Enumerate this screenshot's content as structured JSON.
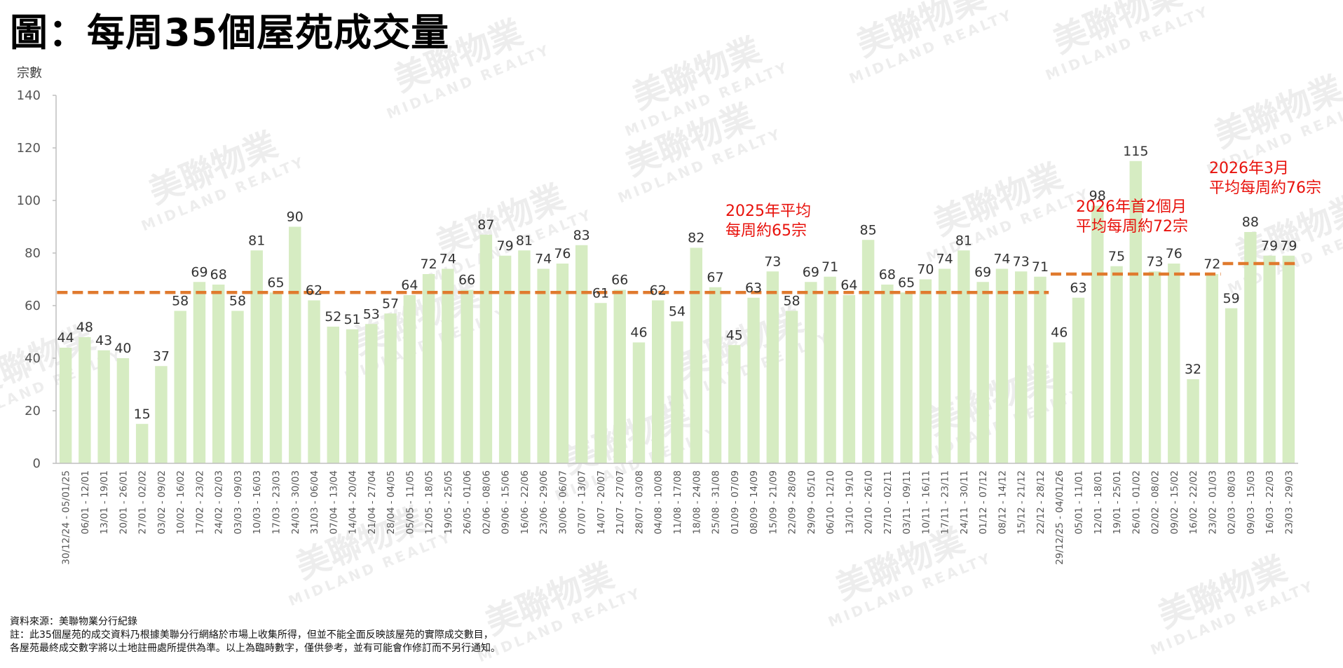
{
  "title": "圖：每周35個屋苑成交量",
  "chart_data": {
    "type": "bar",
    "title": "圖：每周35個屋苑成交量",
    "ylabel": "宗數",
    "xlabel": "",
    "ylim": [
      0,
      140
    ],
    "yticks": [
      0,
      20,
      40,
      60,
      80,
      100,
      120,
      140
    ],
    "grid": false,
    "categories": [
      "30/12/24 - 05/01/25",
      "06/01 - 12/01",
      "13/01 - 19/01",
      "20/01 - 26/01",
      "27/01 - 02/02",
      "03/02 - 09/02",
      "10/02 - 16/02",
      "17/02 - 23/02",
      "24/02 - 02/03",
      "03/03 - 09/03",
      "10/03 - 16/03",
      "17/03 - 23/03",
      "24/03 - 30/03",
      "31/03 - 06/04",
      "07/04 - 13/04",
      "14/04 - 20/04",
      "21/04 - 27/04",
      "28/04 - 04/05",
      "05/05 - 11/05",
      "12/05 - 18/05",
      "19/05 - 25/05",
      "26/05 - 01/06",
      "02/06 - 08/06",
      "09/06 - 15/06",
      "16/06 - 22/06",
      "23/06 - 29/06",
      "30/06 - 06/07",
      "07/07 - 13/07",
      "14/07 - 20/07",
      "21/07 - 27/07",
      "28/07 - 03/08",
      "04/08 - 10/08",
      "11/08 - 17/08",
      "18/08 - 24/08",
      "25/08 - 31/08",
      "01/09 - 07/09",
      "08/09 - 14/09",
      "15/09 - 21/09",
      "22/09 - 28/09",
      "29/09 - 05/10",
      "06/10 - 12/10",
      "13/10 - 19/10",
      "20/10 - 26/10",
      "27/10 - 02/11",
      "03/11 - 09/11",
      "10/11 - 16/11",
      "17/11 - 23/11",
      "24/11 - 30/11",
      "01/12 - 07/12",
      "08/12 - 14/12",
      "15/12 - 21/12",
      "22/12 - 28/12",
      "29/12/25 - 04/01/26",
      "05/01 - 11/01",
      "12/01 - 18/01",
      "19/01 - 25/01",
      "26/01 - 01/02",
      "02/02 - 08/02",
      "09/02 - 15/02",
      "16/02 - 22/02",
      "23/02 - 01/03",
      "02/03 - 08/03",
      "09/03 - 15/03",
      "16/03 - 22/03",
      "23/03 - 29/03"
    ],
    "values": [
      44,
      48,
      43,
      40,
      15,
      37,
      58,
      69,
      68,
      58,
      81,
      65,
      90,
      62,
      52,
      51,
      53,
      57,
      64,
      72,
      74,
      66,
      87,
      79,
      81,
      74,
      76,
      83,
      61,
      66,
      46,
      62,
      54,
      82,
      67,
      45,
      63,
      73,
      58,
      69,
      71,
      64,
      85,
      68,
      65,
      70,
      74,
      81,
      69,
      74,
      73,
      71,
      46,
      63,
      98,
      75,
      115,
      73,
      76,
      32,
      72,
      59,
      88,
      79,
      79
    ],
    "bar_color": "#d6ecc2",
    "average_lines": [
      {
        "label_lines": [
          "2025年平均",
          "每周約65宗"
        ],
        "value": 65,
        "start_index": 0,
        "end_index": 51
      },
      {
        "label_lines": [
          "2026年首2個月",
          "平均每周約72宗"
        ],
        "value": 72,
        "start_index": 52,
        "end_index": 60
      },
      {
        "label_lines": [
          "2026年3月",
          "平均每周約76宗"
        ],
        "value": 76,
        "start_index": 61,
        "end_index": 64
      }
    ],
    "average_line_color": "#e07a2e",
    "average_label_color": "#e8120c"
  },
  "watermark": {
    "brand": "美聯物業",
    "sub": "MIDLAND REALTY"
  },
  "footnotes": [
    "資料來源：美聯物業分行紀錄",
    "註：此35個屋苑的成交資料乃根據美聯分行網絡於市場上收集所得，但並不能全面反映該屋苑的實際成交數目，",
    "各屋苑最終成交數字將以土地註冊處所提供為準。以上為臨時數字，僅供參考，並有可能會作修訂而不另行通知。"
  ]
}
